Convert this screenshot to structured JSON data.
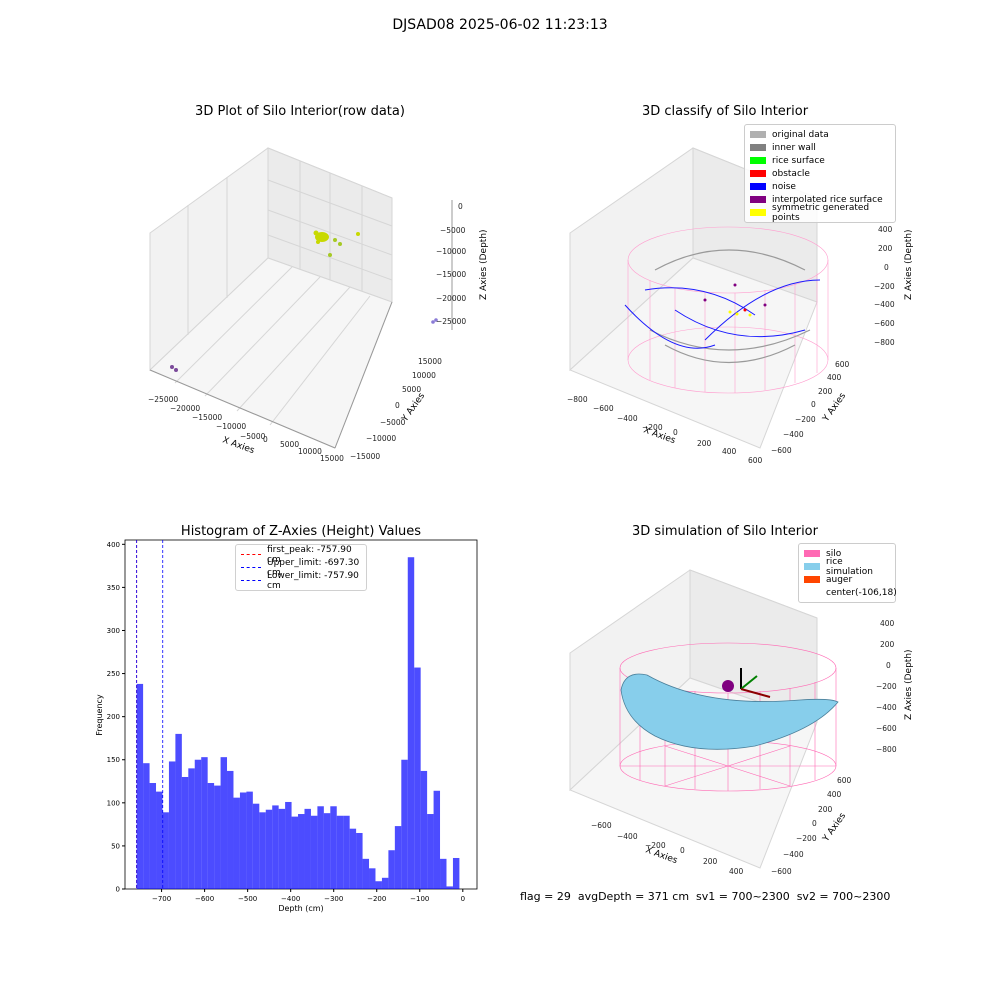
{
  "figure_title": "DJSAD08 2025-06-02 11:23:13",
  "status_line": "flag = 29  avgDepth = 371 cm  sv1 = 700~2300  sv2 = 700~2300",
  "panels": {
    "raw": {
      "title": "3D Plot of Silo Interior(row data)",
      "xlabel": "X Axies",
      "ylabel": "Y Axies",
      "zlabel": "Z Axies (Depth)",
      "xticks": [
        "−25000",
        "−20000",
        "−15000",
        "−10000",
        "−5000",
        "0",
        "5000",
        "10000",
        "15000"
      ],
      "yticks": [
        "−15000",
        "−10000",
        "−5000",
        "0",
        "5000",
        "10000",
        "15000"
      ],
      "zticks": [
        "0",
        "−5000",
        "−10000",
        "−15000",
        "−20000",
        "−25000"
      ]
    },
    "classify": {
      "title": "3D classify of Silo Interior",
      "xlabel": "X Axies",
      "ylabel": "Y Axies",
      "zlabel": "Z Axies (Depth)",
      "xticks": [
        "−800",
        "−600",
        "−400",
        "−200",
        "0",
        "200",
        "400",
        "600"
      ],
      "yticks": [
        "−600",
        "−400",
        "−200",
        "0",
        "200",
        "400",
        "600"
      ],
      "zticks": [
        "400",
        "200",
        "0",
        "−200",
        "−400",
        "−600",
        "−800"
      ],
      "legend": [
        {
          "label": "original data",
          "color": "#b0b0b0"
        },
        {
          "label": "inner wall",
          "color": "#808080"
        },
        {
          "label": "rice surface",
          "color": "#00ff00"
        },
        {
          "label": "obstacle",
          "color": "#ff0000"
        },
        {
          "label": "noise",
          "color": "#0000ff"
        },
        {
          "label": "interpolated rice surface",
          "color": "#800080"
        },
        {
          "label": "symmetric generated points",
          "color": "#ffff00"
        }
      ]
    },
    "simulation": {
      "title": "3D simulation of Silo Interior",
      "xlabel": "X Axies",
      "ylabel": "Y Axies",
      "zlabel": "Z Axies (Depth)",
      "xticks": [
        "−600",
        "−400",
        "−200",
        "0",
        "200",
        "400"
      ],
      "yticks": [
        "−600",
        "−400",
        "−200",
        "0",
        "200",
        "400",
        "600"
      ],
      "zticks": [
        "400",
        "200",
        "0",
        "−200",
        "−400",
        "−600",
        "−800"
      ],
      "legend": [
        {
          "label": "silo",
          "color": "#ff69b4"
        },
        {
          "label": "rice simulation",
          "color": "#87ceeb"
        },
        {
          "label": "auger",
          "color": "#ff4500"
        },
        {
          "label": "center(-106,18)",
          "color": ""
        }
      ]
    }
  },
  "chart_data": [
    {
      "type": "bar",
      "title": "Histogram of Z-Axies (Height) Values",
      "xlabel": "Depth (cm)",
      "ylabel": "Frequency",
      "xlim": [
        -785,
        33
      ],
      "ylim": [
        0,
        405
      ],
      "xticks": [
        -700,
        -600,
        -500,
        -400,
        -300,
        -200,
        -100,
        0
      ],
      "yticks": [
        0,
        50,
        100,
        150,
        200,
        250,
        300,
        350,
        400
      ],
      "bin_start": -757.9,
      "bin_width": 15,
      "values": [
        238,
        146,
        123,
        113,
        89,
        148,
        180,
        130,
        140,
        150,
        153,
        123,
        120,
        153,
        137,
        106,
        112,
        113,
        99,
        89,
        92,
        97,
        93,
        101,
        84,
        87,
        93,
        85,
        96,
        88,
        96,
        85,
        85,
        70,
        65,
        35,
        24,
        9,
        13,
        45,
        73,
        150,
        385,
        257,
        137,
        87,
        114,
        35,
        3,
        36
      ],
      "bar_color": "#0000ff",
      "vlines": [
        {
          "label": "first_peak: -757.90 cm",
          "x": -757.9,
          "color": "#ff0000"
        },
        {
          "label": "Upper_limit: -697.30 cm",
          "x": -697.3,
          "color": "#0000ff"
        },
        {
          "label": "Lower_limit: -757.90 cm",
          "x": -757.9,
          "color": "#0000ff"
        }
      ],
      "legend_position": "top-center"
    }
  ]
}
